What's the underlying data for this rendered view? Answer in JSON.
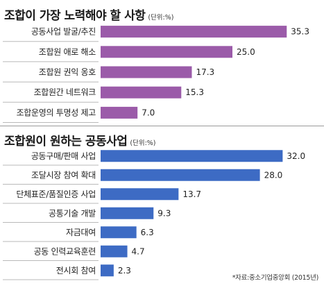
{
  "chart_data": [
    {
      "type": "bar",
      "orientation": "horizontal",
      "title": "조합이 가장 노력해야 할 사항",
      "unit": "(단위:%)",
      "categories": [
        "공동사업 발굴/추진",
        "조합원 애로 해소",
        "조합원 권익 옹호",
        "조합원간 네트워크",
        "조합운영의 투명성 제고"
      ],
      "values": [
        35.3,
        25.0,
        17.3,
        15.3,
        7.0
      ],
      "value_labels": [
        "35.3",
        "25.0",
        "17.3",
        "15.3",
        "7.0"
      ],
      "color": "#9b5ba9"
    },
    {
      "type": "bar",
      "orientation": "horizontal",
      "title": "조합원이 원하는 공동사업",
      "unit": "(단위:%)",
      "categories": [
        "공동구매/판매 사업",
        "조달시장 참여 확대",
        "단체표준/품질인증 사업",
        "공통기술 개발",
        "자금대여",
        "공동 인력교육훈련",
        "전시회 참여"
      ],
      "values": [
        32.0,
        28.0,
        13.7,
        9.3,
        6.3,
        4.7,
        2.3
      ],
      "value_labels": [
        "32.0",
        "28.0",
        "13.7",
        "9.3",
        "6.3",
        "4.7",
        "2.3"
      ],
      "color": "#3d6bc4"
    }
  ],
  "source": "*자료:중소기업중앙회 (2015년)"
}
